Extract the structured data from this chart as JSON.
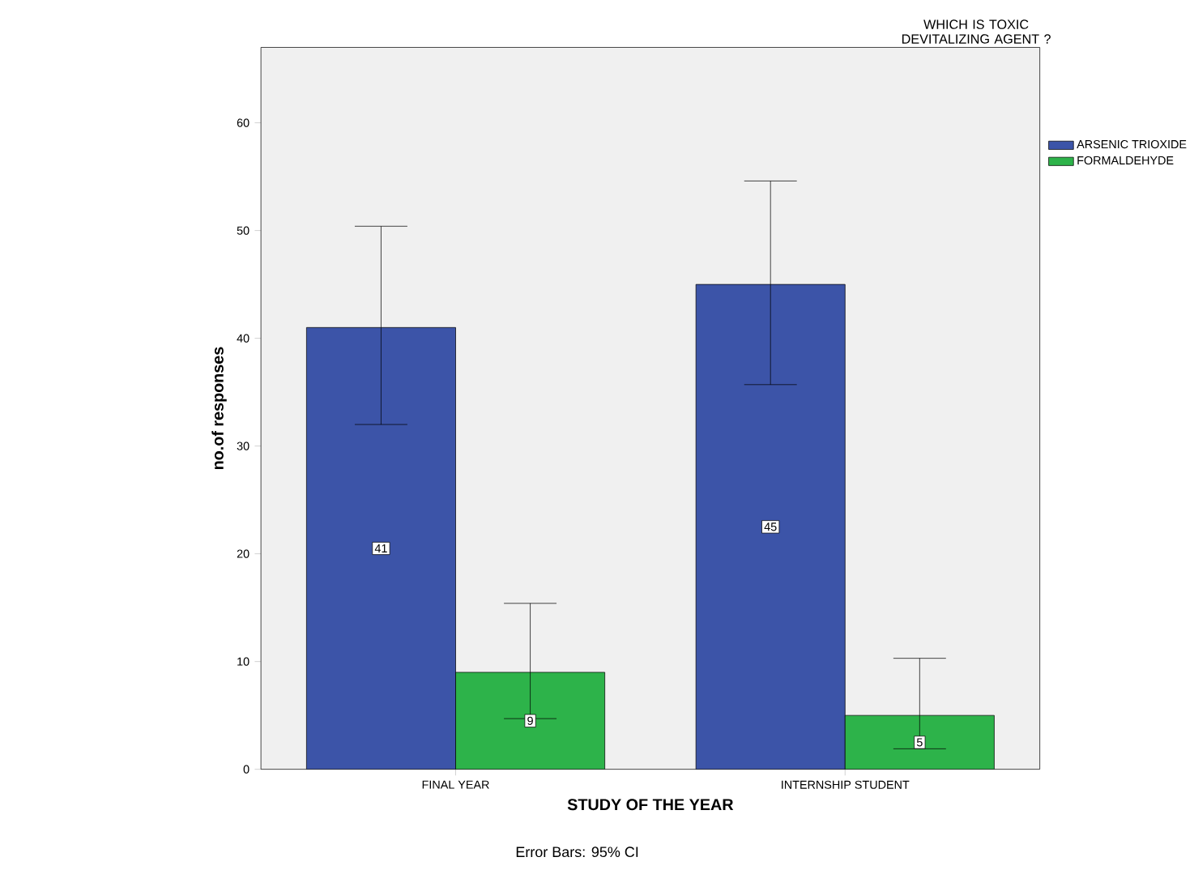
{
  "chart_data": {
    "type": "bar",
    "xlabel": "STUDY OF THE YEAR",
    "ylabel": "no.of responses",
    "legend_title": "WHICH IS TOXIC DEVITALIZING AGENT ?",
    "categories": [
      "FINAL YEAR",
      "INTERNSHIP STUDENT"
    ],
    "series": [
      {
        "name": "ARSENIC TRIOXIDE",
        "color": "#3c54a8",
        "values": [
          41,
          45
        ],
        "errors": [
          [
            32.0,
            50.4
          ],
          [
            35.7,
            54.6
          ]
        ]
      },
      {
        "name": "FORMALDEHYDE",
        "color": "#2db34a",
        "values": [
          9,
          5
        ],
        "errors": [
          [
            4.7,
            15.4
          ],
          [
            1.9,
            10.3
          ]
        ]
      }
    ],
    "ylim": [
      0,
      67
    ],
    "yticks": [
      0,
      10,
      20,
      30,
      40,
      50,
      60
    ],
    "data_labels": true,
    "legend": "right",
    "grid": false,
    "annotations": [
      "Error Bars: 95% CI"
    ]
  }
}
